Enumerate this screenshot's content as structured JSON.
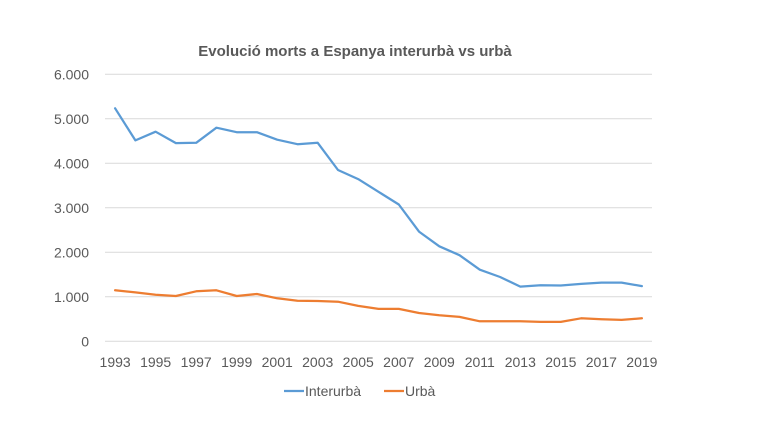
{
  "chart_data": {
    "type": "line",
    "title": "Evolució morts a Espanya interurbà vs urbà",
    "xlabel": "",
    "ylabel": "",
    "x": [
      1993,
      1994,
      1995,
      1996,
      1997,
      1998,
      1999,
      2000,
      2001,
      2002,
      2003,
      2004,
      2005,
      2006,
      2007,
      2008,
      2009,
      2010,
      2011,
      2012,
      2013,
      2014,
      2015,
      2016,
      2017,
      2018,
      2019
    ],
    "x_tick_labels": [
      "1993",
      "1995",
      "1997",
      "1999",
      "2001",
      "2003",
      "2005",
      "2007",
      "2009",
      "2011",
      "2013",
      "2015",
      "2017",
      "2019"
    ],
    "ylim": [
      0,
      6000
    ],
    "y_ticks": [
      0,
      1000,
      2000,
      3000,
      4000,
      5000,
      6000
    ],
    "y_tick_labels": [
      "0",
      "1.000",
      "2.000",
      "3.000",
      "4.000",
      "5.000",
      "6.000"
    ],
    "grid": true,
    "legend_position": "bottom",
    "series": [
      {
        "name": "Interurbà",
        "color": "#5B9BD5",
        "values": [
          5235,
          4515,
          4710,
          4455,
          4460,
          4800,
          4700,
          4700,
          4530,
          4430,
          4460,
          3850,
          3645,
          3360,
          3075,
          2465,
          2135,
          1935,
          1610,
          1445,
          1230,
          1260,
          1255,
          1290,
          1320,
          1320,
          1240
        ]
      },
      {
        "name": "Urbà",
        "color": "#ED7D31",
        "values": [
          1146,
          1100,
          1047,
          1018,
          1123,
          1146,
          1018,
          1063,
          967,
          910,
          905,
          890,
          795,
          727,
          727,
          637,
          585,
          548,
          450,
          450,
          450,
          435,
          435,
          517,
          495,
          480,
          517
        ]
      }
    ]
  }
}
